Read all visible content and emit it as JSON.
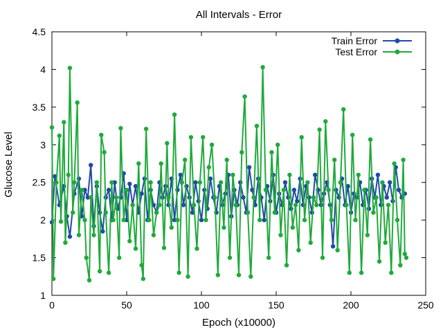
{
  "chart_data": {
    "type": "line",
    "title": "All Intervals - Error",
    "xlabel": "Epoch (x10000)",
    "ylabel": "Glucose Level",
    "xlim": [
      0,
      250
    ],
    "ylim": [
      1,
      4.5
    ],
    "xticks": [
      "0",
      "50",
      "100",
      "150",
      "200",
      "250"
    ],
    "yticks": [
      "1",
      "1.5",
      "2",
      "2.5",
      "3",
      "3.5",
      "4",
      "4.5"
    ],
    "grid": false,
    "legend_position": "top-right",
    "colors": {
      "train": "#1f4aa8",
      "test": "#1faa3a"
    },
    "series": [
      {
        "name": "Train Error",
        "color": "#1f4aa8",
        "x": [
          0,
          2,
          5,
          8,
          10,
          12,
          15,
          18,
          20,
          22,
          24,
          26,
          28,
          30,
          32,
          34,
          36,
          38,
          40,
          42,
          44,
          46,
          48,
          50,
          52,
          54,
          56,
          58,
          60,
          62,
          64,
          66,
          68,
          70,
          72,
          74,
          76,
          78,
          80,
          82,
          84,
          86,
          88,
          90,
          92,
          94,
          96,
          98,
          100,
          102,
          104,
          106,
          108,
          110,
          112,
          114,
          116,
          118,
          120,
          122,
          124,
          126,
          128,
          130,
          132,
          134,
          136,
          138,
          140,
          142,
          144,
          146,
          148,
          150,
          152,
          154,
          156,
          158,
          160,
          162,
          164,
          166,
          168,
          170,
          172,
          174,
          176,
          178,
          180,
          182,
          184,
          186,
          188,
          190,
          192,
          194,
          196,
          198,
          200,
          202,
          204,
          206,
          208,
          210,
          212,
          214,
          216,
          218,
          220,
          222,
          224,
          226,
          228,
          230,
          232,
          234,
          236
        ],
        "y": [
          1.97,
          2.58,
          2.2,
          2.45,
          2.05,
          1.78,
          2.35,
          2.55,
          2.05,
          2.4,
          2.3,
          2.73,
          1.92,
          2.45,
          2.1,
          1.85,
          2.3,
          2.4,
          2.0,
          2.5,
          2.15,
          2.3,
          2.62,
          2.0,
          2.48,
          2.2,
          2.45,
          2.1,
          2.35,
          2.55,
          2.0,
          2.4,
          2.2,
          2.1,
          2.5,
          2.3,
          2.45,
          2.2,
          2.55,
          2.0,
          2.4,
          2.6,
          2.2,
          2.45,
          2.3,
          2.1,
          2.5,
          2.25,
          2.0,
          2.4,
          2.15,
          2.55,
          2.3,
          2.1,
          2.45,
          2.2,
          2.35,
          2.6,
          2.05,
          2.4,
          2.2,
          2.5,
          2.3,
          2.1,
          2.7,
          2.4,
          2.2,
          2.55,
          2.3,
          2.0,
          2.45,
          2.25,
          2.6,
          2.1,
          2.35,
          2.2,
          2.5,
          2.3,
          2.15,
          2.4,
          2.25,
          2.55,
          2.2,
          2.45,
          2.3,
          2.1,
          2.6,
          2.4,
          2.2,
          2.35,
          2.5,
          2.2,
          1.65,
          2.4,
          2.3,
          2.55,
          2.2,
          2.45,
          2.1,
          2.35,
          2.3,
          2.5,
          2.2,
          2.4,
          2.15,
          2.55,
          2.3,
          2.6,
          2.2,
          2.45,
          2.3,
          2.5,
          2.25,
          2.7,
          2.4,
          2.3,
          2.35
        ]
      },
      {
        "name": "Test Error",
        "color": "#1faa3a",
        "x": [
          0,
          1,
          3,
          5,
          6,
          8,
          9,
          11,
          12,
          14,
          15,
          17,
          18,
          20,
          22,
          23,
          25,
          26,
          28,
          30,
          32,
          33,
          35,
          36,
          38,
          40,
          41,
          43,
          45,
          46,
          48,
          50,
          52,
          54,
          56,
          58,
          60,
          61,
          63,
          65,
          66,
          68,
          70,
          72,
          73,
          75,
          77,
          78,
          80,
          82,
          84,
          85,
          87,
          89,
          91,
          93,
          95,
          97,
          99,
          101,
          103,
          105,
          107,
          109,
          111,
          113,
          115,
          117,
          119,
          121,
          123,
          125,
          127,
          129,
          131,
          133,
          135,
          137,
          139,
          141,
          143,
          145,
          147,
          149,
          151,
          153,
          155,
          157,
          159,
          161,
          163,
          165,
          167,
          169,
          171,
          173,
          175,
          177,
          179,
          181,
          183,
          185,
          187,
          189,
          191,
          193,
          195,
          197,
          199,
          201,
          203,
          205,
          207,
          209,
          211,
          213,
          215,
          217,
          219,
          221,
          223,
          225,
          227,
          229,
          231,
          233,
          235,
          236,
          237
        ],
        "y": [
          3.23,
          1.22,
          2.5,
          3.12,
          1.98,
          3.3,
          1.7,
          2.6,
          4.02,
          2.1,
          2.5,
          3.56,
          1.8,
          2.4,
          2.0,
          1.5,
          1.2,
          2.3,
          1.8,
          2.5,
          1.32,
          3.13,
          2.9,
          2.1,
          1.3,
          2.5,
          2.0,
          2.3,
          1.5,
          3.22,
          2.0,
          2.4,
          1.72,
          2.2,
          1.62,
          2.75,
          1.4,
          1.22,
          3.21,
          2.0,
          2.5,
          1.8,
          2.1,
          2.2,
          2.75,
          1.63,
          3.02,
          2.3,
          1.9,
          3.4,
          2.0,
          1.3,
          2.5,
          2.8,
          1.25,
          3.1,
          2.2,
          1.62,
          2.5,
          3.1,
          2.0,
          2.7,
          3.0,
          2.3,
          1.27,
          2.5,
          1.9,
          2.8,
          1.5,
          2.6,
          2.2,
          1.27,
          2.9,
          3.64,
          2.1,
          1.25,
          2.3,
          3.25,
          2.0,
          4.03,
          2.4,
          1.5,
          2.9,
          2.1,
          3.0,
          1.8,
          2.4,
          1.4,
          2.6,
          1.9,
          2.2,
          1.6,
          3.1,
          2.0,
          2.5,
          1.7,
          2.3,
          2.2,
          3.2,
          1.5,
          3.31,
          2.4,
          2.0,
          2.8,
          1.6,
          2.5,
          3.47,
          2.2,
          1.3,
          3.13,
          2.0,
          2.6,
          1.3,
          2.4,
          1.8,
          3.07,
          2.1,
          2.3,
          1.45,
          2.5,
          1.7,
          2.2,
          1.3,
          2.75,
          2.0,
          1.4,
          2.8,
          1.55,
          1.5
        ]
      }
    ]
  }
}
